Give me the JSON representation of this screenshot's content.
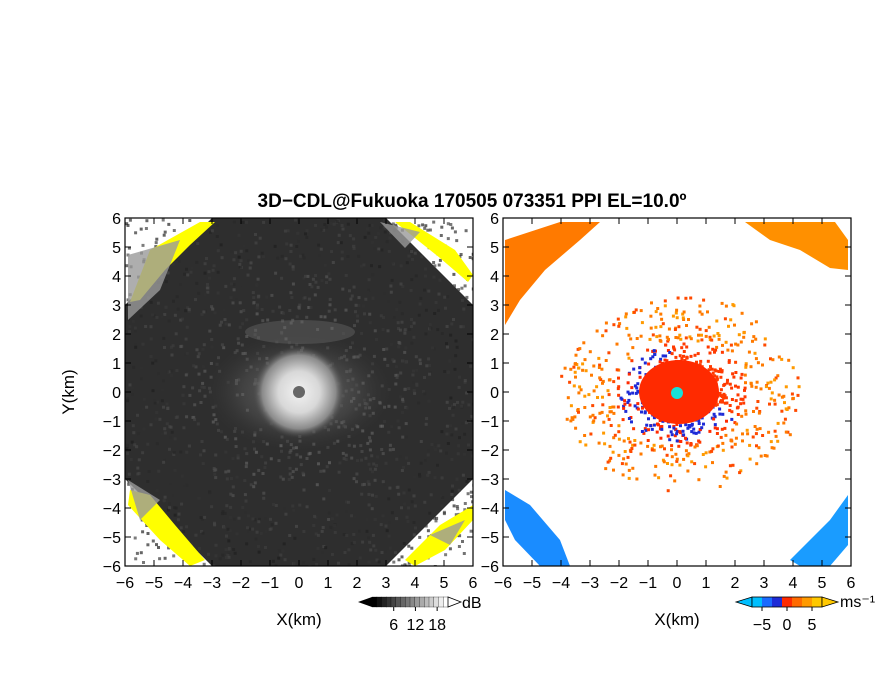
{
  "figure": {
    "title": "3D−CDL@Fukuoka 170505 073351 PPI EL=10.0º"
  },
  "chart_data": [
    {
      "type": "heatmap",
      "panel": "left",
      "xlabel": "X(km)",
      "ylabel": "Y(km)",
      "xlim": [
        -6,
        6
      ],
      "ylim": [
        -6,
        6
      ],
      "xticks": [
        -6,
        -5,
        -4,
        -3,
        -2,
        -1,
        0,
        1,
        2,
        3,
        4,
        5,
        6
      ],
      "yticks": [
        -6,
        -5,
        -4,
        -3,
        -2,
        -1,
        0,
        1,
        2,
        3,
        4,
        5,
        6
      ],
      "grid": false,
      "colormap": "grayscale",
      "background_color": "#2e2e2e",
      "saturation_color": "#ffff00",
      "colorbar": {
        "unit": "dB",
        "ticks": [
          6,
          12,
          18
        ],
        "range": [
          0,
          21
        ]
      }
    },
    {
      "type": "heatmap",
      "panel": "right",
      "xlabel": "X(km)",
      "ylabel": "",
      "xlim": [
        -6,
        6
      ],
      "ylim": [
        -6,
        6
      ],
      "xticks": [
        -6,
        -5,
        -4,
        -3,
        -2,
        -1,
        0,
        1,
        2,
        3,
        4,
        5,
        6
      ],
      "yticks": [
        -6,
        -5,
        -4,
        -3,
        -2,
        -1,
        0,
        1,
        2,
        3,
        4,
        5,
        6
      ],
      "grid": false,
      "colormap": "diverging blue-red",
      "colorbar": {
        "unit": "ms⁻¹",
        "ticks": [
          -5,
          0,
          5
        ],
        "range": [
          -7,
          7
        ],
        "colors": [
          "#00bfff",
          "#1a6bff",
          "#1e2bd6",
          "#ff2a00",
          "#ff6a00",
          "#ff9a00",
          "#ffc800"
        ]
      }
    }
  ]
}
